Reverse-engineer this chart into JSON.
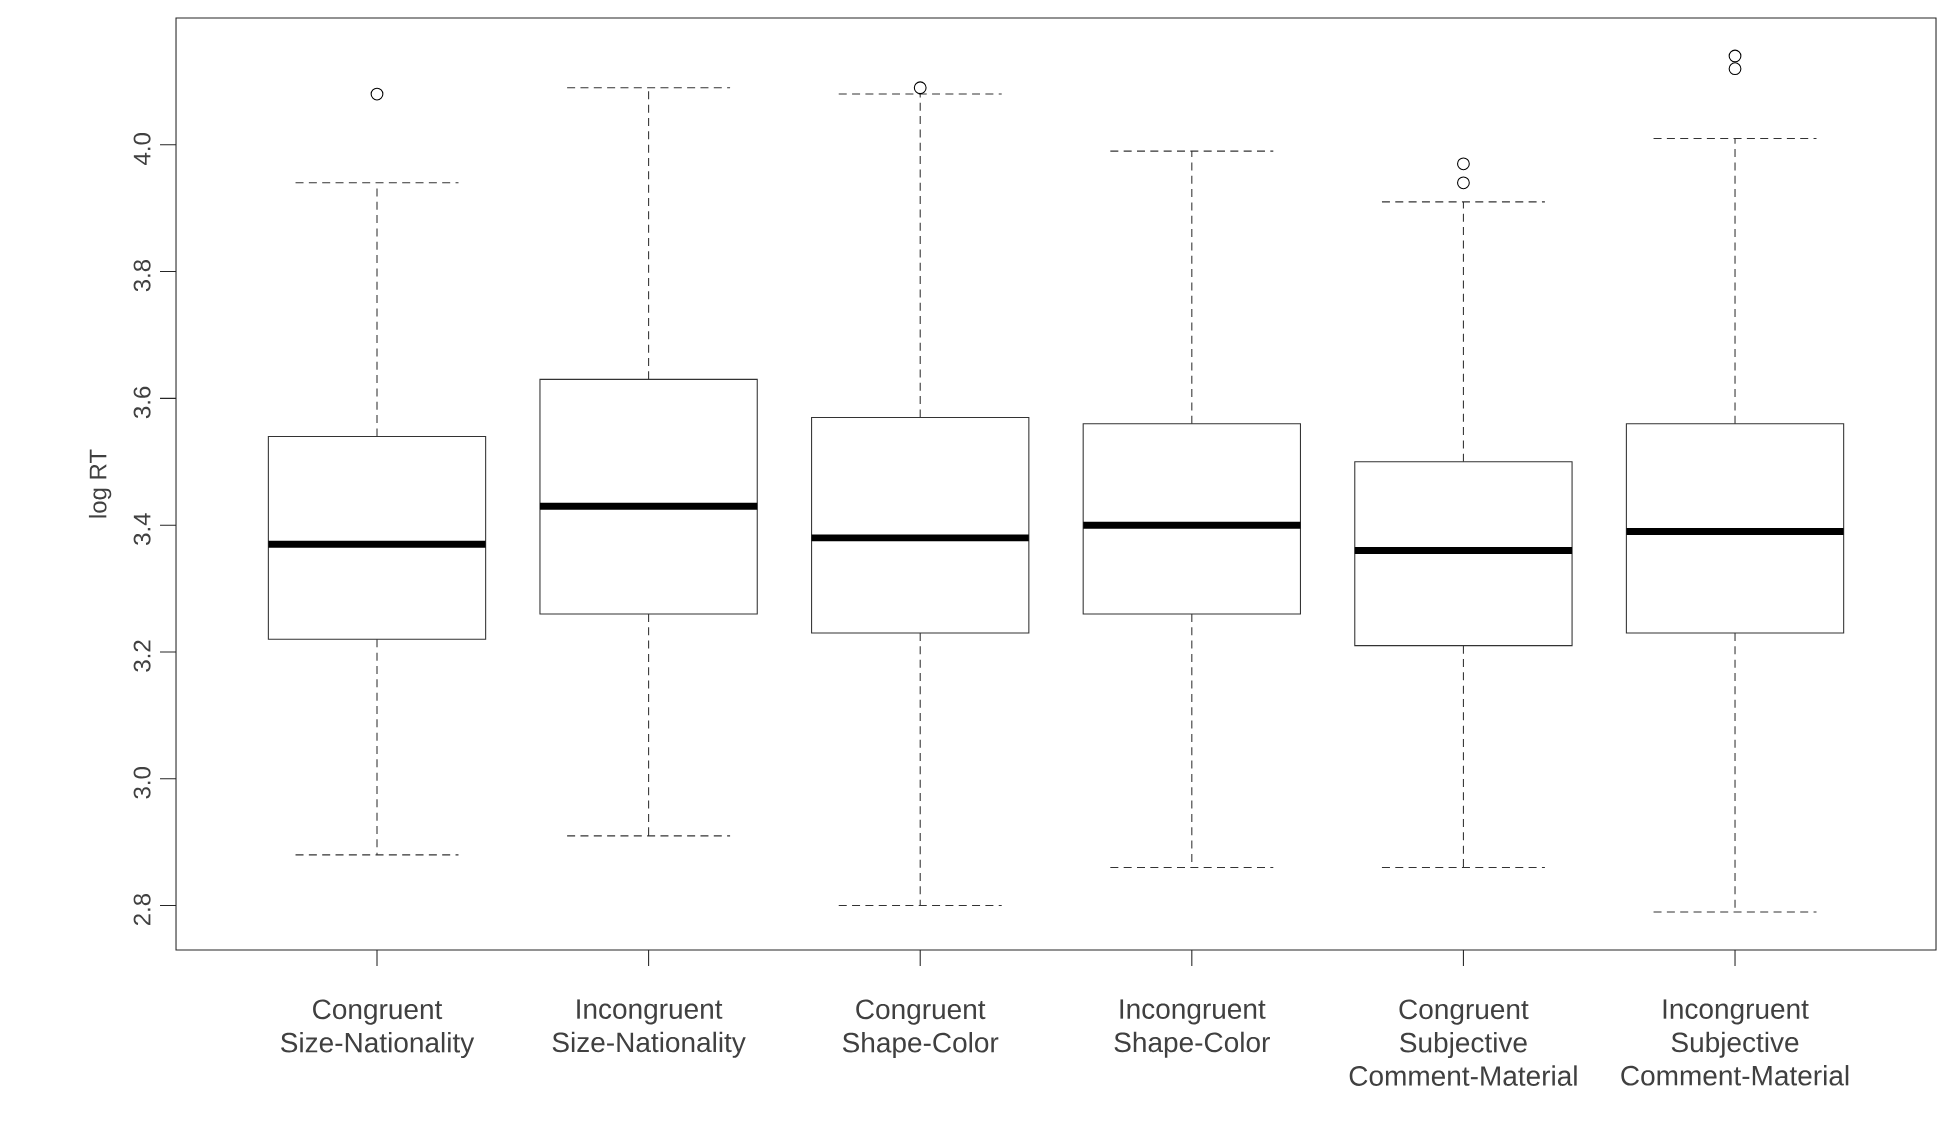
{
  "chart_data": {
    "type": "box",
    "ylabel": "log RT",
    "categories": [
      "Congruent Size-Nationality",
      "Incongruent Size-Nationality",
      "Congruent Shape-Color",
      "Incongruent Shape-Color",
      "Congruent Subjective Comment-Material",
      "Incongruent Subjective Comment-Material"
    ],
    "boxes": [
      {
        "low": 2.88,
        "q1": 3.22,
        "median": 3.37,
        "q3": 3.54,
        "high": 3.94,
        "outliers": [
          4.08
        ]
      },
      {
        "low": 2.91,
        "q1": 3.26,
        "median": 3.43,
        "q3": 3.63,
        "high": 4.09
      },
      {
        "low": 2.8,
        "q1": 3.23,
        "median": 3.38,
        "q3": 3.57,
        "high": 4.08,
        "outliers": [
          4.09
        ]
      },
      {
        "low": 2.86,
        "q1": 3.26,
        "median": 3.4,
        "q3": 3.56,
        "high": 3.99
      },
      {
        "low": 2.86,
        "q1": 3.21,
        "median": 3.36,
        "q3": 3.5,
        "high": 3.91,
        "outliers": [
          3.97,
          3.94
        ]
      },
      {
        "low": 2.79,
        "q1": 3.23,
        "median": 3.39,
        "q3": 3.56,
        "high": 4.01,
        "outliers": [
          4.14,
          4.12
        ]
      }
    ],
    "ylim": [
      2.73,
      4.2
    ],
    "yticks": [
      2.8,
      {
        "value": 3,
        "label": "3.0"
      },
      3.2,
      3.4,
      3.6,
      3.8,
      {
        "value": 4,
        "label": "4.0"
      }
    ]
  }
}
